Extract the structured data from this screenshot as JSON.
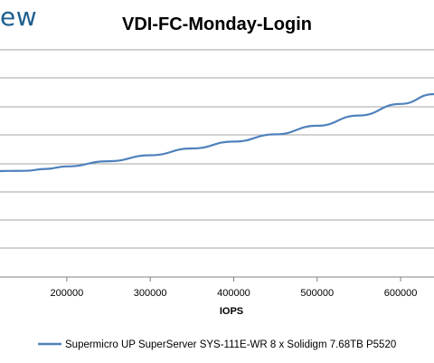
{
  "logo_text": "ew",
  "chart_data": {
    "type": "line",
    "title": "VDI-FC-Monday-Login",
    "xlabel": "IOPS",
    "ylabel": "",
    "xlim": [
      120000,
      640000
    ],
    "x_ticks": [
      200000,
      300000,
      400000,
      500000,
      600000
    ],
    "grid": true,
    "legend_position": "bottom",
    "series": [
      {
        "name": "Supermicro UP SuperServer SYS-111E-WR 8 x Solidigm 7.68TB P5520",
        "x": [
          120000,
          130000,
          150000,
          175000,
          200000,
          250000,
          300000,
          350000,
          400000,
          450000,
          500000,
          550000,
          600000,
          640000
        ],
        "y": [
          0.0,
          0.02,
          0.03,
          0.25,
          0.55,
          1.15,
          1.85,
          2.65,
          3.45,
          4.3,
          5.3,
          6.5,
          7.85,
          9.0
        ]
      }
    ],
    "colors": {
      "line": "#4f81bd",
      "grid": "#a6a6a6",
      "axis": "#808080"
    }
  }
}
